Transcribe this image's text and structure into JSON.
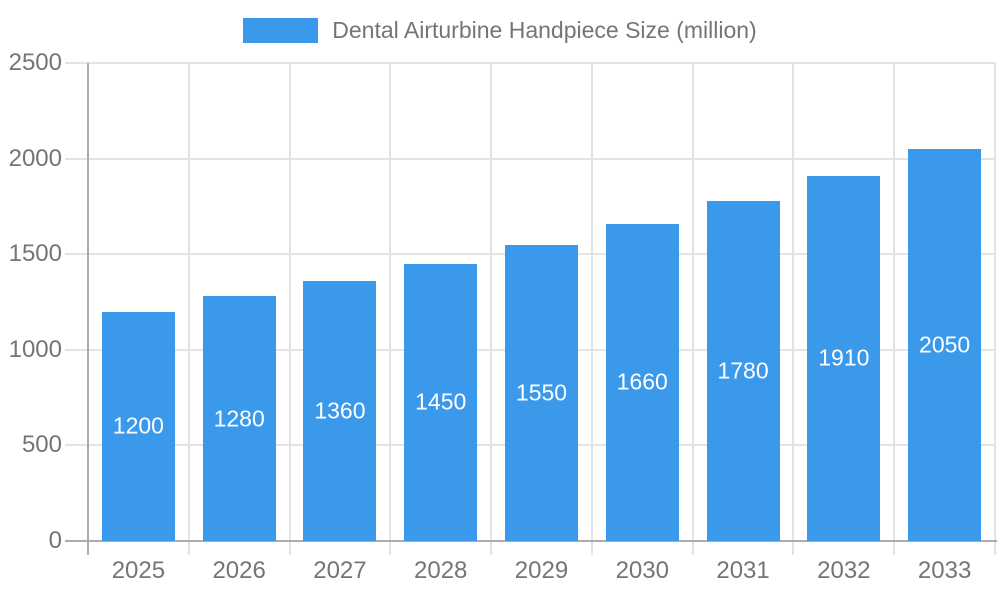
{
  "chart_data": {
    "type": "bar",
    "title": "Dental Airturbine Handpiece Size (million)",
    "legend_position": "top",
    "categories": [
      "2025",
      "2026",
      "2027",
      "2028",
      "2029",
      "2030",
      "2031",
      "2032",
      "2033"
    ],
    "values": [
      1200,
      1280,
      1360,
      1450,
      1550,
      1660,
      1780,
      1910,
      2050
    ],
    "series": [
      {
        "name": "Dental Airturbine Handpiece Size (million)",
        "values": [
          1200,
          1280,
          1360,
          1450,
          1550,
          1660,
          1780,
          1910,
          2050
        ]
      }
    ],
    "xlabel": "",
    "ylabel": "",
    "ylim": [
      0,
      2500
    ],
    "yticks": [
      0,
      500,
      1000,
      1500,
      2000,
      2500
    ],
    "grid": true,
    "value_labels_shown": true,
    "colors": {
      "bar": "#3B99EC",
      "value_label": "#FFFFFF",
      "grid_line": "#E3E3E3",
      "axis_line": "#ACACAC",
      "tick_text": "#757575",
      "legend_text": "#757575",
      "background": "#FFFFFF"
    }
  }
}
